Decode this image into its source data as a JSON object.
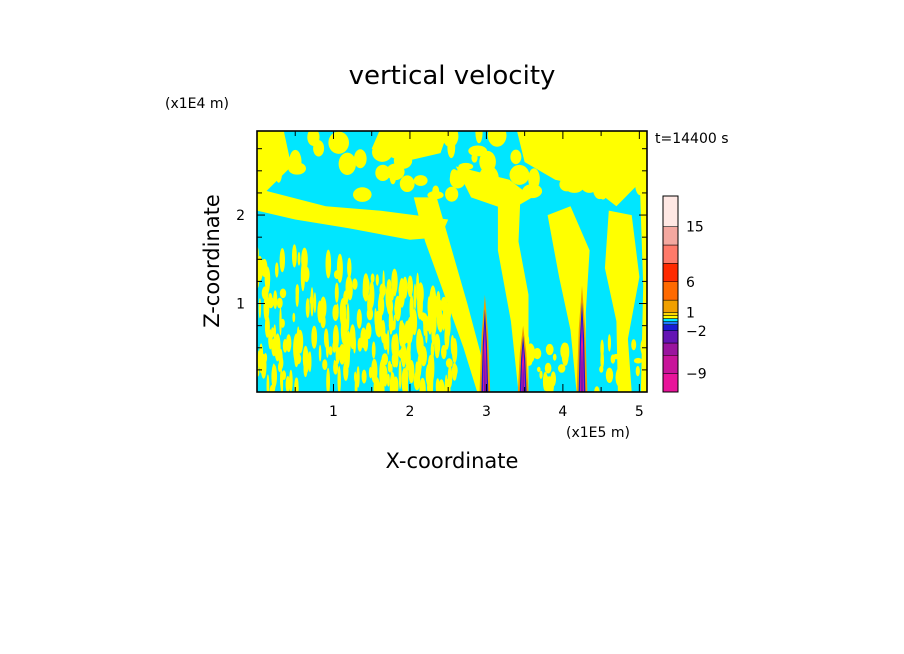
{
  "chart_data": {
    "type": "heatmap",
    "title": "vertical velocity",
    "xlabel": "X-coordinate",
    "ylabel": "Z-coordinate",
    "x_unit": "(x1E5 m)",
    "z_unit": "(x1E4 m)",
    "time_label": "t=14400 s",
    "xlim": [
      0.0,
      5.1
    ],
    "zlim": [
      0.0,
      2.95
    ],
    "x_ticks": [
      1,
      2,
      3,
      4,
      5
    ],
    "z_ticks": [
      1,
      2
    ],
    "colorbar": {
      "labels": [
        "15",
        "6",
        "1",
        "−2",
        "−9"
      ],
      "label_values": [
        15,
        6,
        1,
        -2,
        -9
      ],
      "bins": [
        {
          "lo": -12,
          "hi": -9,
          "color": "#e8149a"
        },
        {
          "lo": -9,
          "hi": -6,
          "color": "#c8149a"
        },
        {
          "lo": -6,
          "hi": -4,
          "color": "#9a149e"
        },
        {
          "lo": -4,
          "hi": -2,
          "color": "#6414b4"
        },
        {
          "lo": -2,
          "hi": -1,
          "color": "#1a1ad2"
        },
        {
          "lo": -1,
          "hi": -0.5,
          "color": "#1e78ff"
        },
        {
          "lo": -0.5,
          "hi": 0,
          "color": "#00e6ff"
        },
        {
          "lo": 0,
          "hi": 0.5,
          "color": "#ffff00"
        },
        {
          "lo": 0.5,
          "hi": 1,
          "color": "#ffd800"
        },
        {
          "lo": 1,
          "hi": 3,
          "color": "#f0a000"
        },
        {
          "lo": 3,
          "hi": 6,
          "color": "#ff6a00"
        },
        {
          "lo": 6,
          "hi": 9,
          "color": "#ff2a00"
        },
        {
          "lo": 9,
          "hi": 12,
          "color": "#ff7a6a"
        },
        {
          "lo": 12,
          "hi": 15,
          "color": "#f4a8a0"
        },
        {
          "lo": 15,
          "hi": 20,
          "color": "#ffe8e4"
        }
      ]
    },
    "features": {
      "background_field": "cyan (-0.5 to 0 m/s)",
      "updraft_regions": "yellow (0 to 0.5 m/s)",
      "convective_cores_x": [
        2.98,
        3.48,
        4.25
      ],
      "convective_cores_top_z": [
        1.1,
        0.75,
        1.2
      ],
      "upper_plume_columns_x": [
        2.2,
        3.3,
        4.7
      ],
      "stable_layer_z": 2.0
    }
  }
}
